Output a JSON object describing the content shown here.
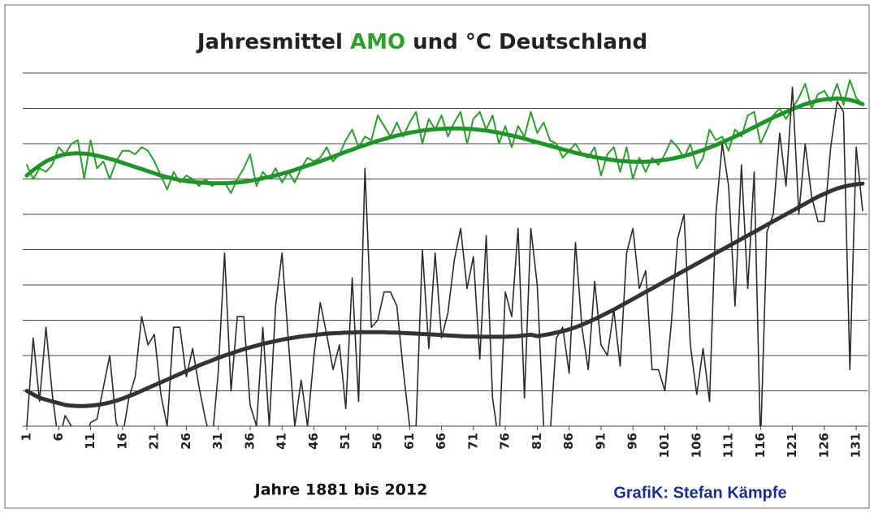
{
  "chart_data": {
    "type": "line",
    "title_parts": [
      "Jahresmittel",
      "und"
    ],
    "xlabel": "Jahre 1881 bis 2012",
    "credit": "GrafiK: Stefan Kämpfe",
    "xlim": [
      1,
      132
    ],
    "ylim": [
      0,
      10
    ],
    "xticks": [
      1,
      6,
      11,
      16,
      21,
      26,
      31,
      36,
      41,
      46,
      51,
      56,
      61,
      66,
      71,
      76,
      81,
      86,
      91,
      96,
      101,
      106,
      111,
      116,
      121,
      126,
      131
    ],
    "yticks": [
      0,
      1,
      2,
      3,
      4,
      5,
      6,
      7,
      8,
      9,
      10
    ],
    "grid": true,
    "x": [
      1,
      2,
      3,
      4,
      5,
      6,
      7,
      8,
      9,
      10,
      11,
      12,
      13,
      14,
      15,
      16,
      17,
      18,
      19,
      20,
      21,
      22,
      23,
      24,
      25,
      26,
      27,
      28,
      29,
      30,
      31,
      32,
      33,
      34,
      35,
      36,
      37,
      38,
      39,
      40,
      41,
      42,
      43,
      44,
      45,
      46,
      47,
      48,
      49,
      50,
      51,
      52,
      53,
      54,
      55,
      56,
      57,
      58,
      59,
      60,
      61,
      62,
      63,
      64,
      65,
      66,
      67,
      68,
      69,
      70,
      71,
      72,
      73,
      74,
      75,
      76,
      77,
      78,
      79,
      80,
      81,
      82,
      83,
      84,
      85,
      86,
      87,
      88,
      89,
      90,
      91,
      92,
      93,
      94,
      95,
      96,
      97,
      98,
      99,
      100,
      101,
      102,
      103,
      104,
      105,
      106,
      107,
      108,
      109,
      110,
      111,
      112,
      113,
      114,
      115,
      116,
      117,
      118,
      119,
      120,
      121,
      122,
      123,
      124,
      125,
      126,
      127,
      128,
      129,
      130,
      131,
      132
    ],
    "series": [
      {
        "name": "AMO",
        "color": "#2e9e2e",
        "width": 2,
        "values": [
          7.4,
          7.0,
          7.3,
          7.2,
          7.4,
          7.9,
          7.7,
          8.0,
          8.1,
          7.0,
          8.1,
          7.3,
          7.5,
          7.0,
          7.5,
          7.8,
          7.8,
          7.7,
          7.9,
          7.8,
          7.5,
          7.1,
          6.7,
          7.2,
          6.9,
          7.1,
          7.0,
          6.8,
          7.0,
          6.8,
          6.9,
          6.9,
          6.6,
          7.0,
          7.3,
          7.7,
          6.8,
          7.2,
          7.0,
          7.3,
          6.9,
          7.2,
          6.9,
          7.3,
          7.6,
          7.5,
          7.6,
          7.9,
          7.5,
          7.7,
          8.1,
          8.4,
          7.9,
          8.2,
          8.1,
          8.8,
          8.5,
          8.2,
          8.6,
          8.2,
          8.6,
          8.9,
          8.0,
          8.7,
          8.4,
          8.8,
          8.2,
          8.6,
          8.9,
          8.0,
          8.7,
          8.9,
          8.4,
          8.8,
          8.0,
          8.5,
          7.9,
          8.5,
          8.2,
          8.9,
          8.3,
          8.6,
          8.1,
          8.0,
          7.6,
          7.8,
          8.0,
          7.7,
          7.6,
          7.9,
          7.1,
          7.7,
          7.9,
          7.2,
          7.9,
          7.0,
          7.6,
          7.2,
          7.6,
          7.4,
          7.7,
          8.1,
          7.9,
          7.6,
          8.0,
          7.3,
          7.6,
          8.4,
          8.1,
          8.2,
          7.8,
          8.4,
          8.2,
          8.8,
          8.9,
          8.0,
          8.4,
          8.8,
          9.0,
          8.7,
          9.0,
          9.3,
          9.7,
          9.0,
          9.4,
          9.5,
          9.2,
          9.7,
          9.1,
          9.8,
          9.3,
          9.1
        ]
      },
      {
        "color": "#22922a",
        "width": 5,
        "values": [
          7.1,
          7.25,
          7.38,
          7.5,
          7.58,
          7.65,
          7.7,
          7.72,
          7.73,
          7.72,
          7.7,
          7.66,
          7.62,
          7.57,
          7.52,
          7.46,
          7.4,
          7.34,
          7.28,
          7.22,
          7.16,
          7.1,
          7.05,
          7.01,
          6.97,
          6.94,
          6.92,
          6.9,
          6.89,
          6.88,
          6.88,
          6.88,
          6.89,
          6.9,
          6.92,
          6.95,
          6.98,
          7.02,
          7.06,
          7.1,
          7.15,
          7.2,
          7.26,
          7.32,
          7.38,
          7.44,
          7.5,
          7.57,
          7.63,
          7.7,
          7.77,
          7.83,
          7.9,
          7.96,
          8.02,
          8.08,
          8.13,
          8.18,
          8.23,
          8.27,
          8.31,
          8.34,
          8.37,
          8.39,
          8.41,
          8.42,
          8.43,
          8.43,
          8.43,
          8.42,
          8.41,
          8.39,
          8.37,
          8.34,
          8.31,
          8.27,
          8.23,
          8.19,
          8.14,
          8.09,
          8.04,
          7.99,
          7.94,
          7.89,
          7.84,
          7.79,
          7.74,
          7.7,
          7.66,
          7.62,
          7.59,
          7.56,
          7.53,
          7.51,
          7.5,
          7.49,
          7.49,
          7.49,
          7.5,
          7.52,
          7.54,
          7.57,
          7.61,
          7.65,
          7.7,
          7.76,
          7.82,
          7.89,
          7.96,
          8.04,
          8.12,
          8.2,
          8.29,
          8.38,
          8.47,
          8.56,
          8.65,
          8.74,
          8.82,
          8.9,
          8.98,
          9.05,
          9.12,
          9.17,
          9.22,
          9.25,
          9.27,
          9.28,
          9.27,
          9.24,
          9.19,
          9.12
        ]
      },
      {
        "name": "°C Deutschland",
        "color": "#2b2b2b",
        "width": 1.6,
        "values": [
          0.0,
          2.5,
          0.7,
          2.8,
          0.9,
          -0.5,
          0.3,
          0.0,
          -0.3,
          -0.5,
          0.1,
          0.2,
          1.1,
          2.0,
          0.1,
          -0.3,
          0.8,
          1.4,
          3.1,
          2.3,
          2.6,
          0.9,
          0.0,
          2.8,
          2.8,
          1.4,
          2.2,
          1.1,
          0.2,
          -0.5,
          1.5,
          4.9,
          1.0,
          3.1,
          3.1,
          0.6,
          0.0,
          2.8,
          0.0,
          3.4,
          4.9,
          2.4,
          0.0,
          1.3,
          0.0,
          2.0,
          3.5,
          2.6,
          1.6,
          2.3,
          0.5,
          4.2,
          0.7,
          7.3,
          2.8,
          3.0,
          3.8,
          3.8,
          3.4,
          1.6,
          0.0,
          0.0,
          5.0,
          2.2,
          4.9,
          2.5,
          3.2,
          4.7,
          5.6,
          3.9,
          4.8,
          1.9,
          5.4,
          0.8,
          -0.5,
          3.8,
          3.1,
          5.6,
          0.8,
          5.6,
          4.0,
          0.0,
          -0.3,
          2.5,
          2.8,
          1.5,
          5.2,
          2.8,
          1.6,
          4.1,
          2.3,
          2.0,
          3.3,
          1.7,
          4.9,
          5.6,
          3.9,
          4.4,
          1.6,
          1.6,
          1.0,
          2.9,
          5.3,
          6.0,
          2.3,
          0.9,
          2.2,
          0.7,
          6.0,
          8.0,
          6.8,
          3.4,
          7.4,
          3.9,
          7.2,
          -0.5,
          5.5,
          6.0,
          8.3,
          6.8,
          9.6,
          6.0,
          8.0,
          6.5,
          5.8,
          5.8,
          7.9,
          9.2,
          8.9,
          1.6,
          7.9,
          6.1
        ]
      },
      {
        "color": "#333333",
        "width": 5,
        "values": [
          1.0,
          0.9,
          0.8,
          0.75,
          0.7,
          0.65,
          0.6,
          0.58,
          0.57,
          0.57,
          0.58,
          0.6,
          0.63,
          0.67,
          0.72,
          0.78,
          0.85,
          0.92,
          1.0,
          1.08,
          1.16,
          1.24,
          1.32,
          1.4,
          1.48,
          1.56,
          1.64,
          1.72,
          1.79,
          1.86,
          1.93,
          2.0,
          2.06,
          2.12,
          2.18,
          2.23,
          2.28,
          2.33,
          2.37,
          2.41,
          2.45,
          2.48,
          2.51,
          2.54,
          2.56,
          2.58,
          2.6,
          2.62,
          2.63,
          2.64,
          2.65,
          2.65,
          2.66,
          2.66,
          2.66,
          2.66,
          2.66,
          2.65,
          2.65,
          2.64,
          2.63,
          2.62,
          2.61,
          2.6,
          2.59,
          2.58,
          2.57,
          2.56,
          2.55,
          2.54,
          2.54,
          2.53,
          2.53,
          2.53,
          2.53,
          2.53,
          2.54,
          2.55,
          2.57,
          2.59,
          2.55,
          2.58,
          2.61,
          2.65,
          2.69,
          2.74,
          2.8,
          2.87,
          2.95,
          3.03,
          3.12,
          3.21,
          3.3,
          3.4,
          3.5,
          3.6,
          3.7,
          3.8,
          3.9,
          4.0,
          4.1,
          4.2,
          4.3,
          4.4,
          4.5,
          4.6,
          4.7,
          4.8,
          4.9,
          5.0,
          5.1,
          5.2,
          5.3,
          5.4,
          5.5,
          5.6,
          5.7,
          5.8,
          5.9,
          6.0,
          6.1,
          6.2,
          6.3,
          6.4,
          6.5,
          6.58,
          6.66,
          6.73,
          6.78,
          6.82,
          6.85,
          6.87
        ]
      }
    ]
  }
}
